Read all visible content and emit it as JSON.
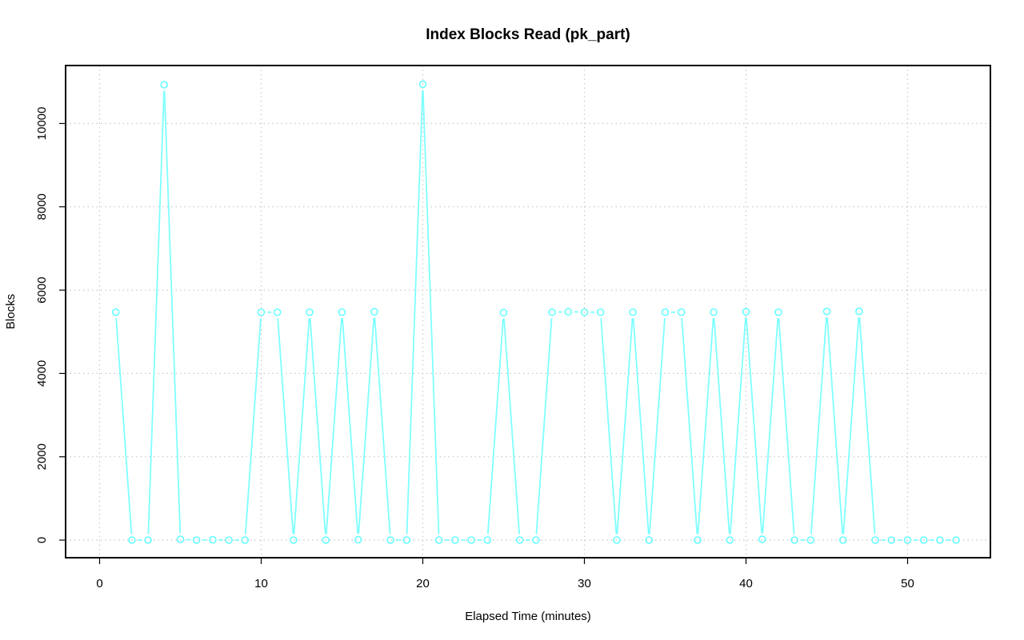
{
  "chart_data": {
    "type": "line",
    "title": "Index Blocks Read (pk_part)",
    "xlabel": "Elapsed Time (minutes)",
    "ylabel": "Blocks",
    "xlim": [
      -2,
      55
    ],
    "ylim": [
      -400,
      11500
    ],
    "xticks": [
      0,
      10,
      20,
      30,
      40,
      50
    ],
    "yticks": [
      0,
      2000,
      4000,
      6000,
      8000,
      10000
    ],
    "grid": true,
    "series_color": "#7fffff",
    "marker": "open-circle",
    "series": [
      {
        "x": [
          1,
          2,
          3,
          4,
          5,
          6,
          7,
          8,
          9,
          10,
          11,
          12,
          13,
          14,
          15,
          16,
          17,
          18,
          19,
          20,
          21,
          22,
          23,
          24,
          25,
          26,
          27,
          28,
          29,
          30,
          31,
          32,
          33,
          34,
          35,
          36,
          37,
          38,
          39,
          40,
          41,
          42,
          43,
          44,
          45,
          46,
          47,
          48,
          49,
          50,
          51,
          52,
          53
        ],
        "values": [
          5470,
          0,
          0,
          10930,
          20,
          0,
          10,
          0,
          0,
          5470,
          5470,
          0,
          5470,
          0,
          5470,
          10,
          5480,
          0,
          0,
          10940,
          0,
          0,
          0,
          0,
          5460,
          0,
          0,
          5470,
          5480,
          5470,
          5470,
          0,
          5470,
          0,
          5470,
          5470,
          0,
          5470,
          0,
          5480,
          20,
          5470,
          0,
          0,
          5490,
          0,
          5490,
          0,
          0,
          0,
          0,
          0,
          0
        ]
      }
    ]
  }
}
